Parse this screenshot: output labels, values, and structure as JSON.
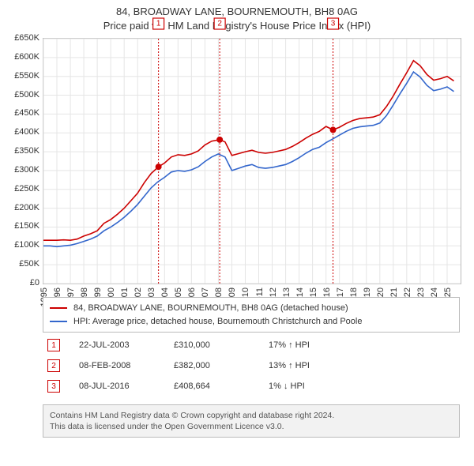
{
  "title_line1": "84, BROADWAY LANE, BOURNEMOUTH, BH8 0AG",
  "title_line2": "Price paid vs. HM Land Registry's House Price Index (HPI)",
  "chart": {
    "type": "line",
    "background_color": "#ffffff",
    "grid_color": "#e5e5e5",
    "axis_color": "#bbbbbb",
    "label_fontsize": 11,
    "x_years": [
      1995,
      1996,
      1997,
      1998,
      1999,
      2000,
      2001,
      2002,
      2003,
      2004,
      2005,
      2006,
      2007,
      2008,
      2009,
      2010,
      2011,
      2012,
      2013,
      2014,
      2015,
      2016,
      2017,
      2018,
      2019,
      2020,
      2021,
      2022,
      2023,
      2024,
      2025
    ],
    "x_min": 1995,
    "x_max": 2026,
    "y_ticks": [
      0,
      50,
      100,
      150,
      200,
      250,
      300,
      350,
      400,
      450,
      500,
      550,
      600,
      650
    ],
    "y_tick_labels": [
      "£0",
      "£50K",
      "£100K",
      "£150K",
      "£200K",
      "£250K",
      "£300K",
      "£350K",
      "£400K",
      "£450K",
      "£500K",
      "£550K",
      "£600K",
      "£650K"
    ],
    "y_min": 0,
    "y_max": 650,
    "series": [
      {
        "name": "84, BROADWAY LANE, BOURNEMOUTH, BH8 0AG (detached house)",
        "color": "#cc0000",
        "data": [
          [
            1995,
            115
          ],
          [
            1995.5,
            115
          ],
          [
            1996,
            115
          ],
          [
            1996.5,
            116
          ],
          [
            1997,
            115
          ],
          [
            1997.5,
            118
          ],
          [
            1998,
            126
          ],
          [
            1998.5,
            132
          ],
          [
            1999,
            140
          ],
          [
            1999.5,
            160
          ],
          [
            2000,
            170
          ],
          [
            2000.5,
            184
          ],
          [
            2001,
            200
          ],
          [
            2001.5,
            220
          ],
          [
            2002,
            240
          ],
          [
            2002.5,
            268
          ],
          [
            2003,
            292
          ],
          [
            2003.55,
            310
          ],
          [
            2004,
            320
          ],
          [
            2004.5,
            336
          ],
          [
            2005,
            342
          ],
          [
            2005.5,
            340
          ],
          [
            2006,
            344
          ],
          [
            2006.5,
            352
          ],
          [
            2007,
            368
          ],
          [
            2007.5,
            378
          ],
          [
            2008.1,
            382
          ],
          [
            2008.5,
            376
          ],
          [
            2009,
            340
          ],
          [
            2009.5,
            345
          ],
          [
            2010,
            350
          ],
          [
            2010.5,
            354
          ],
          [
            2011,
            348
          ],
          [
            2011.5,
            346
          ],
          [
            2012,
            348
          ],
          [
            2012.5,
            352
          ],
          [
            2013,
            356
          ],
          [
            2013.5,
            364
          ],
          [
            2014,
            374
          ],
          [
            2014.5,
            386
          ],
          [
            2015,
            396
          ],
          [
            2015.5,
            404
          ],
          [
            2016,
            417
          ],
          [
            2016.52,
            408
          ],
          [
            2017,
            415
          ],
          [
            2017.5,
            425
          ],
          [
            2018,
            433
          ],
          [
            2018.5,
            438
          ],
          [
            2019,
            440
          ],
          [
            2019.5,
            442
          ],
          [
            2020,
            448
          ],
          [
            2020.5,
            470
          ],
          [
            2021,
            498
          ],
          [
            2021.5,
            530
          ],
          [
            2022,
            560
          ],
          [
            2022.5,
            592
          ],
          [
            2023,
            578
          ],
          [
            2023.5,
            555
          ],
          [
            2024,
            540
          ],
          [
            2024.5,
            544
          ],
          [
            2025,
            550
          ],
          [
            2025.5,
            538
          ]
        ]
      },
      {
        "name": "HPI: Average price, detached house, Bournemouth Christchurch and Poole",
        "color": "#3366cc",
        "data": [
          [
            1995,
            100
          ],
          [
            1995.5,
            100
          ],
          [
            1996,
            98
          ],
          [
            1996.5,
            100
          ],
          [
            1997,
            102
          ],
          [
            1997.5,
            106
          ],
          [
            1998,
            112
          ],
          [
            1998.5,
            118
          ],
          [
            1999,
            126
          ],
          [
            1999.5,
            140
          ],
          [
            2000,
            150
          ],
          [
            2000.5,
            162
          ],
          [
            2001,
            176
          ],
          [
            2001.5,
            192
          ],
          [
            2002,
            210
          ],
          [
            2002.5,
            232
          ],
          [
            2003,
            254
          ],
          [
            2003.5,
            270
          ],
          [
            2004,
            282
          ],
          [
            2004.5,
            296
          ],
          [
            2005,
            300
          ],
          [
            2005.5,
            298
          ],
          [
            2006,
            302
          ],
          [
            2006.5,
            310
          ],
          [
            2007,
            324
          ],
          [
            2007.5,
            336
          ],
          [
            2008,
            344
          ],
          [
            2008.5,
            336
          ],
          [
            2009,
            300
          ],
          [
            2009.5,
            306
          ],
          [
            2010,
            312
          ],
          [
            2010.5,
            316
          ],
          [
            2011,
            308
          ],
          [
            2011.5,
            306
          ],
          [
            2012,
            308
          ],
          [
            2012.5,
            312
          ],
          [
            2013,
            316
          ],
          [
            2013.5,
            324
          ],
          [
            2014,
            334
          ],
          [
            2014.5,
            346
          ],
          [
            2015,
            356
          ],
          [
            2015.5,
            362
          ],
          [
            2016,
            374
          ],
          [
            2016.5,
            384
          ],
          [
            2017,
            394
          ],
          [
            2017.5,
            404
          ],
          [
            2018,
            412
          ],
          [
            2018.5,
            416
          ],
          [
            2019,
            418
          ],
          [
            2019.5,
            420
          ],
          [
            2020,
            426
          ],
          [
            2020.5,
            446
          ],
          [
            2021,
            474
          ],
          [
            2021.5,
            504
          ],
          [
            2022,
            532
          ],
          [
            2022.5,
            562
          ],
          [
            2023,
            548
          ],
          [
            2023.5,
            526
          ],
          [
            2024,
            512
          ],
          [
            2024.5,
            516
          ],
          [
            2025,
            522
          ],
          [
            2025.5,
            510
          ]
        ]
      }
    ],
    "markers": [
      {
        "n": "1",
        "year": 2003.55,
        "value": 310,
        "color": "#cc0000"
      },
      {
        "n": "2",
        "year": 2008.1,
        "value": 382,
        "color": "#cc0000"
      },
      {
        "n": "3",
        "year": 2016.52,
        "value": 408,
        "color": "#cc0000"
      }
    ]
  },
  "legend": [
    {
      "color": "#cc0000",
      "label": "84, BROADWAY LANE, BOURNEMOUTH, BH8 0AG (detached house)"
    },
    {
      "color": "#3366cc",
      "label": "HPI: Average price, detached house, Bournemouth Christchurch and Poole"
    }
  ],
  "events": [
    {
      "n": "1",
      "color": "#cc0000",
      "date": "22-JUL-2003",
      "price": "£310,000",
      "pct": "17% ↑ HPI"
    },
    {
      "n": "2",
      "color": "#cc0000",
      "date": "08-FEB-2008",
      "price": "£382,000",
      "pct": "13% ↑ HPI"
    },
    {
      "n": "3",
      "color": "#cc0000",
      "date": "08-JUL-2016",
      "price": "£408,664",
      "pct": "1% ↓ HPI"
    }
  ],
  "attrib_line1": "Contains HM Land Registry data © Crown copyright and database right 2024.",
  "attrib_line2": "This data is licensed under the Open Government Licence v3.0."
}
